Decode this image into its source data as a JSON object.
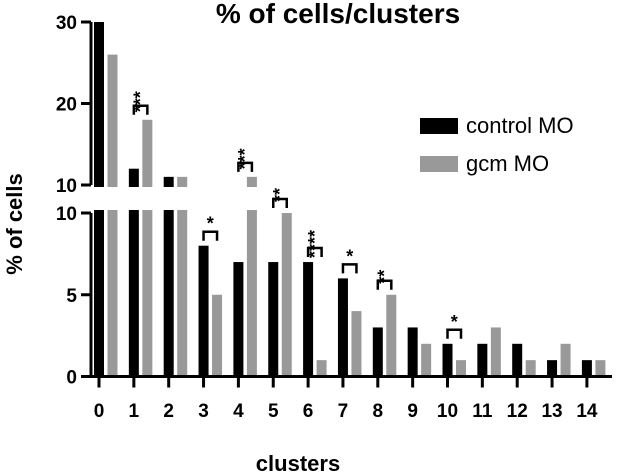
{
  "chart_data": {
    "type": "bar",
    "title": "% of cells/clusters",
    "xlabel": "clusters",
    "ylabel": "% of cells",
    "categories": [
      "0",
      "1",
      "2",
      "3",
      "4",
      "5",
      "6",
      "7",
      "8",
      "9",
      "10",
      "11",
      "12",
      "13",
      "14"
    ],
    "highlight_category": {
      "label": "6",
      "color": "#2e9c82"
    },
    "series": [
      {
        "name": "control MO",
        "color": "#000000",
        "values": [
          30,
          12,
          11,
          8,
          7,
          7,
          7,
          6,
          3,
          3,
          2,
          2,
          2,
          1,
          1
        ]
      },
      {
        "name": "gcm MO",
        "color": "#999999",
        "values": [
          26,
          18,
          11,
          5,
          11,
          10,
          1,
          4,
          5,
          2,
          1,
          3,
          1,
          2,
          1
        ]
      }
    ],
    "y_axis_break": {
      "lower_range": [
        0,
        10
      ],
      "upper_range": [
        10,
        30
      ]
    },
    "yticks_lower": [
      0,
      5,
      10
    ],
    "yticks_upper": [
      10,
      20,
      30
    ],
    "legend_position": "top-right",
    "significance": [
      {
        "category": "1",
        "label": "***"
      },
      {
        "category": "3",
        "label": "*"
      },
      {
        "category": "4",
        "label": "***"
      },
      {
        "category": "5",
        "label": "**"
      },
      {
        "category": "6",
        "label": "****"
      },
      {
        "category": "7",
        "label": "*"
      },
      {
        "category": "8",
        "label": "**"
      },
      {
        "category": "10",
        "label": "*"
      }
    ]
  }
}
